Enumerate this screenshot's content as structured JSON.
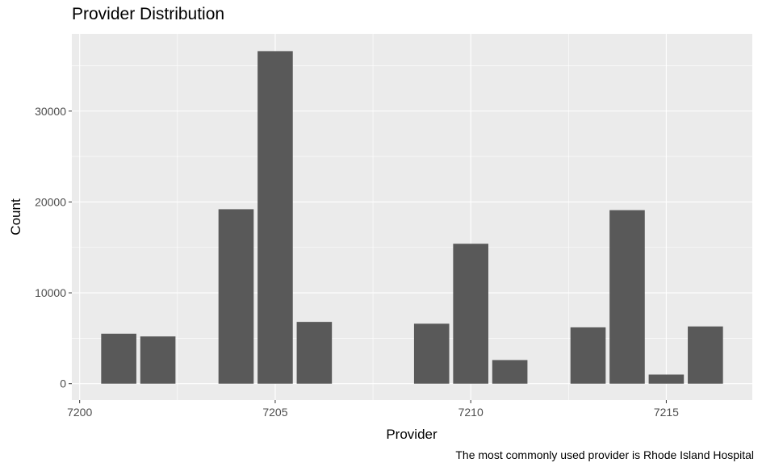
{
  "chart_data": {
    "type": "bar",
    "title": "Provider Distribution",
    "xlabel": "Provider",
    "ylabel": "Count",
    "caption": "The most commonly used provider is Rhode Island Hospital",
    "x": [
      7201,
      7202,
      7204,
      7205,
      7206,
      7209,
      7210,
      7211,
      7213,
      7214,
      7215,
      7216
    ],
    "values": [
      5500,
      5200,
      19200,
      36600,
      6800,
      6600,
      15400,
      2600,
      6200,
      19100,
      1000,
      6300
    ],
    "xlim": [
      7199.8,
      7217.2
    ],
    "ylim": [
      -1800,
      38500
    ],
    "xticks": [
      7200,
      7205,
      7210,
      7215
    ],
    "yticks": [
      0,
      10000,
      20000,
      30000
    ],
    "grid": true,
    "colors": {
      "bar": "#595959",
      "panel": "#ebebeb",
      "grid": "#ffffff"
    }
  }
}
